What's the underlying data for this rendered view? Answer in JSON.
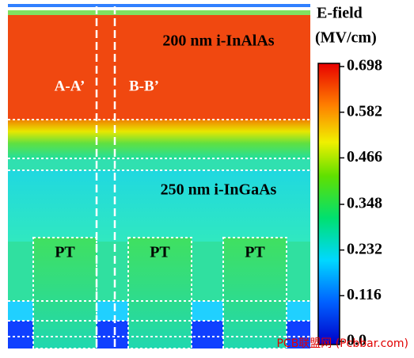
{
  "labels": {
    "layer_top": "200 nm i-InAlAs",
    "layer_mid": "250 nm i-InGaAs",
    "cut_a": "A-A’",
    "cut_b": "B-B’",
    "pt": [
      "PT",
      "PT",
      "PT"
    ]
  },
  "colorbar": {
    "title": "E-field",
    "unit": "(MV/cm)",
    "ticks": [
      0.698,
      0.582,
      0.466,
      0.348,
      0.232,
      0.116,
      {
        "value": 0,
        "label": "0.0"
      }
    ]
  },
  "watermark": "PCB联盟网 (Pcbbar.com)"
}
